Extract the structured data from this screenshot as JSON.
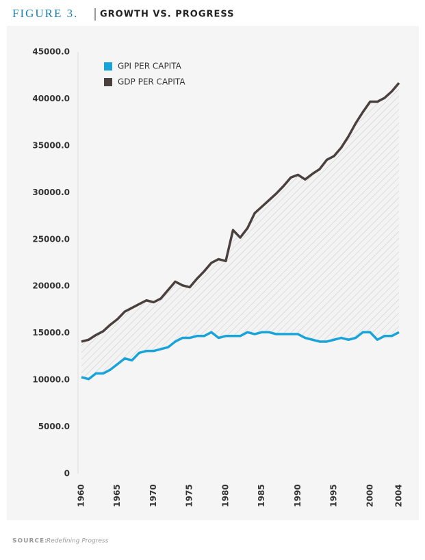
{
  "chart_data": {
    "type": "line",
    "figure_label": "FIGURE 3.",
    "title": "GROWTH VS. PROGRESS",
    "source": {
      "label": "SOURCE:",
      "text": "Redefining Progress"
    },
    "x": [
      1960,
      1961,
      1962,
      1963,
      1964,
      1965,
      1966,
      1967,
      1968,
      1969,
      1970,
      1971,
      1972,
      1973,
      1974,
      1975,
      1976,
      1977,
      1978,
      1979,
      1980,
      1981,
      1982,
      1983,
      1984,
      1985,
      1986,
      1987,
      1988,
      1989,
      1990,
      1991,
      1992,
      1993,
      1994,
      1995,
      1996,
      1997,
      1998,
      1999,
      2000,
      2001,
      2002,
      2003,
      2004
    ],
    "series": [
      {
        "name": "GPI PER CAPITA",
        "color": "#1aa3d9",
        "values": [
          10300,
          10100,
          10700,
          10700,
          11100,
          11700,
          12300,
          12100,
          12900,
          13100,
          13100,
          13300,
          13500,
          14100,
          14500,
          14500,
          14700,
          14700,
          15100,
          14500,
          14700,
          14700,
          14700,
          15100,
          14900,
          15100,
          15100,
          14900,
          14900,
          14900,
          14900,
          14500,
          14300,
          14100,
          14100,
          14300,
          14500,
          14300,
          14500,
          15100,
          15100,
          14300,
          14700,
          14700,
          15100
        ]
      },
      {
        "name": "GDP PER CAPITA",
        "color": "#4a403d",
        "values": [
          14100,
          14300,
          14800,
          15200,
          15900,
          16500,
          17300,
          17700,
          18100,
          18500,
          18300,
          18700,
          19600,
          20500,
          20100,
          19900,
          20800,
          21600,
          22500,
          22900,
          22700,
          26000,
          25200,
          26200,
          27800,
          28500,
          29200,
          29900,
          30700,
          31600,
          31900,
          31400,
          32000,
          32500,
          33500,
          33900,
          34800,
          36000,
          37400,
          38600,
          39700,
          39700,
          40100,
          40800,
          41700
        ]
      }
    ],
    "xlim": [
      1960,
      2004
    ],
    "xticks": [
      1960,
      1965,
      1970,
      1975,
      1980,
      1985,
      1990,
      1995,
      2000,
      2004
    ],
    "ylim": [
      0,
      45000
    ],
    "yticks": [
      0,
      {
        "value": 5000,
        "label": "5000.0"
      },
      {
        "value": 10000,
        "label": "10000.0"
      },
      {
        "value": 15000,
        "label": "15000.0"
      },
      {
        "value": 20000,
        "label": "20000.0"
      },
      {
        "value": 25000,
        "label": "25000.0"
      },
      {
        "value": 30000,
        "label": "30000.0"
      },
      {
        "value": 35000,
        "label": "35000.0"
      },
      {
        "value": 40000,
        "label": "40000.0"
      },
      {
        "value": 45000,
        "label": "45000.0"
      }
    ],
    "grid": false,
    "legend": "upper left",
    "fill_between": true
  }
}
